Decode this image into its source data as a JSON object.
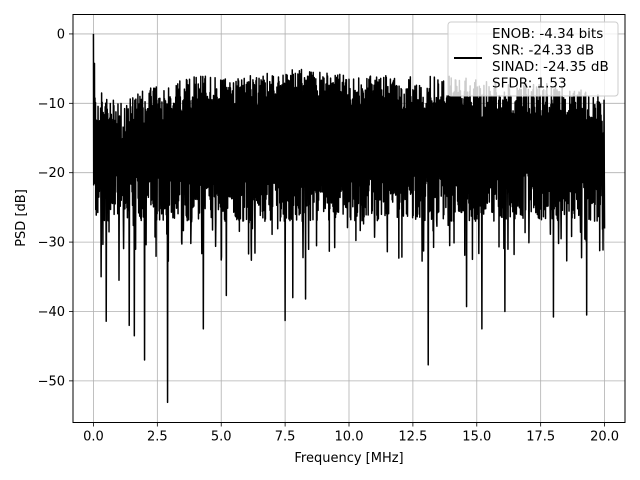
{
  "chart_data": {
    "type": "line",
    "xlabel": "Frequency [MHz]",
    "ylabel": "PSD [dB]",
    "xlim": [
      -0.8,
      20.8
    ],
    "ylim": [
      -56,
      2.8
    ],
    "x_ticks": [
      0.0,
      2.5,
      5.0,
      7.5,
      10.0,
      12.5,
      15.0,
      17.5,
      20.0
    ],
    "x_tick_labels": [
      "0.0",
      "2.5",
      "5.0",
      "7.5",
      "10.0",
      "12.5",
      "15.0",
      "17.5",
      "20.0"
    ],
    "y_ticks": [
      0,
      -10,
      -20,
      -30,
      -40,
      -50
    ],
    "y_tick_labels": [
      "0",
      "−10",
      "−20",
      "−30",
      "−40",
      "−50"
    ],
    "grid": true,
    "legend_position": "top-right",
    "series": [
      {
        "name": "ENOB: -4.34 bits\nSNR: -24.33 dB\nSINAD: -24.35 dB\nSFDR: 1.53",
        "color": "#000000",
        "style": "noise-floor-spectrum",
        "x_range": [
          0.0,
          20.0
        ],
        "envelope_upper": [
          [
            0.0,
            0.0
          ],
          [
            0.1,
            -8
          ],
          [
            1.0,
            -10
          ],
          [
            2.0,
            -8
          ],
          [
            4.0,
            -6
          ],
          [
            6.0,
            -6
          ],
          [
            8.0,
            -5
          ],
          [
            10.0,
            -6
          ],
          [
            12.0,
            -6
          ],
          [
            14.0,
            -6
          ],
          [
            16.0,
            -7
          ],
          [
            18.0,
            -7
          ],
          [
            20.0,
            -9
          ]
        ],
        "envelope_lower_typical": -27,
        "deep_minima": [
          {
            "x": 0.3,
            "y": -35
          },
          {
            "x": 0.5,
            "y": -41.4
          },
          {
            "x": 1.0,
            "y": -35.5
          },
          {
            "x": 1.4,
            "y": -42
          },
          {
            "x": 1.6,
            "y": -43.5
          },
          {
            "x": 2.0,
            "y": -47
          },
          {
            "x": 2.9,
            "y": -53.1
          },
          {
            "x": 4.3,
            "y": -42.5
          },
          {
            "x": 5.2,
            "y": -37.7
          },
          {
            "x": 7.5,
            "y": -41.3
          },
          {
            "x": 7.8,
            "y": -38
          },
          {
            "x": 8.3,
            "y": -38.2
          },
          {
            "x": 13.1,
            "y": -47.7
          },
          {
            "x": 14.6,
            "y": -39.3
          },
          {
            "x": 15.2,
            "y": -42.5
          },
          {
            "x": 16.1,
            "y": -40
          },
          {
            "x": 18.0,
            "y": -40.8
          },
          {
            "x": 19.3,
            "y": -40.5
          }
        ]
      }
    ]
  }
}
